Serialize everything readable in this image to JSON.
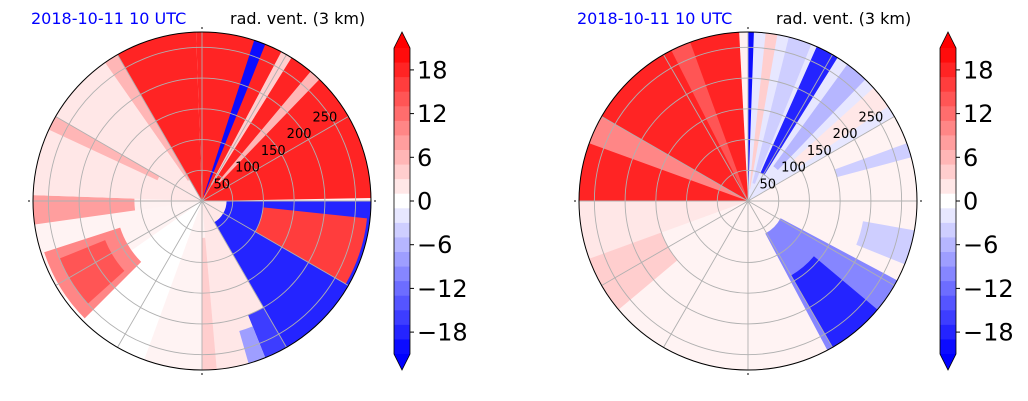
{
  "chart_data": [
    {
      "type": "heatmap",
      "subtype": "polar PPI",
      "title_left": "2018-10-11 10 UTC",
      "title_right": "rad. vent. (3 km)",
      "r_ticks": [
        50,
        100,
        150,
        200,
        250
      ],
      "rlim": [
        0,
        275
      ],
      "angle_lines_deg": [
        0,
        30,
        60,
        90,
        120,
        150,
        180,
        210,
        240,
        270,
        300,
        330
      ],
      "colorbar": {
        "ticks": [
          18,
          12,
          6,
          0,
          -6,
          -12,
          -18
        ],
        "tick_labels": [
          "18",
          "12",
          "6",
          "0",
          "−6",
          "−12",
          "−18"
        ],
        "range": [
          -21,
          21
        ],
        "extend": "both",
        "colormap": "bwr"
      },
      "fields": [
        {
          "a0": -2,
          "a1": 89,
          "r0": 0,
          "r1": 275,
          "v": 18
        },
        {
          "a0": 90,
          "a1": 100,
          "r0": 0,
          "r1": 275,
          "v": 2
        },
        {
          "a0": 100,
          "a1": 150,
          "r0": 0,
          "r1": 275,
          "v": 2
        },
        {
          "a0": 150,
          "a1": 175,
          "r0": 0,
          "r1": 275,
          "v": 2
        },
        {
          "a0": 175,
          "a1": 180,
          "r0": 60,
          "r1": 275,
          "v": 4
        },
        {
          "a0": 180,
          "a1": 200,
          "r0": 0,
          "r1": 275,
          "v": 1
        },
        {
          "a0": 200,
          "a1": 235,
          "r0": 0,
          "r1": 275,
          "v": 0
        },
        {
          "a0": 235,
          "a1": 262,
          "r0": 0,
          "r1": 275,
          "v": 1
        },
        {
          "a0": 262,
          "a1": 272,
          "r0": 110,
          "r1": 275,
          "v": 8
        },
        {
          "a0": 272,
          "a1": 330,
          "r0": 0,
          "r1": 275,
          "v": 2
        },
        {
          "a0": 295,
          "a1": 300,
          "r0": 80,
          "r1": 275,
          "v": 6
        },
        {
          "a0": 325,
          "a1": 330,
          "r0": 40,
          "r1": 275,
          "v": 6
        },
        {
          "a0": 330,
          "a1": 358,
          "r0": 0,
          "r1": 275,
          "v": 18
        },
        {
          "a0": 18,
          "a1": 22,
          "r0": 10,
          "r1": 275,
          "v": -20
        },
        {
          "a0": 28,
          "a1": 32,
          "r0": 30,
          "r1": 275,
          "v": 4
        },
        {
          "a0": 40,
          "a1": 44,
          "r0": 40,
          "r1": 275,
          "v": 6
        },
        {
          "a0": 90,
          "a1": 150,
          "r0": 40,
          "r1": 275,
          "v": -18
        },
        {
          "a0": 96,
          "a1": 120,
          "r0": 100,
          "r1": 270,
          "v": 16
        },
        {
          "a0": 150,
          "a1": 158,
          "r0": 200,
          "r1": 275,
          "v": -16
        },
        {
          "a0": 158,
          "a1": 164,
          "r0": 220,
          "r1": 275,
          "v": -8
        },
        {
          "a0": 225,
          "a1": 252,
          "r0": 140,
          "r1": 270,
          "v": 10
        },
        {
          "a0": 228,
          "a1": 248,
          "r0": 170,
          "r1": 250,
          "v": 14
        }
      ]
    },
    {
      "type": "heatmap",
      "subtype": "polar PPI",
      "title_left": "2018-10-11 10 UTC",
      "title_right": "rad. vent. (3 km)",
      "r_ticks": [
        50,
        100,
        150,
        200,
        250
      ],
      "rlim": [
        0,
        275
      ],
      "angle_lines_deg": [
        0,
        30,
        60,
        90,
        120,
        150,
        180,
        210,
        240,
        270,
        300,
        330
      ],
      "colorbar": {
        "ticks": [
          18,
          12,
          6,
          0,
          -6,
          -12,
          -18
        ],
        "tick_labels": [
          "18",
          "12",
          "6",
          "0",
          "−6",
          "−12",
          "−18"
        ],
        "range": [
          -21,
          21
        ],
        "extend": "both",
        "colormap": "bwr"
      },
      "fields": [
        {
          "a0": 0,
          "a1": 60,
          "r0": 0,
          "r1": 275,
          "v": -2
        },
        {
          "a0": 0,
          "a1": 2,
          "r0": 10,
          "r1": 275,
          "v": -20
        },
        {
          "a0": 6,
          "a1": 10,
          "r0": 20,
          "r1": 275,
          "v": 4
        },
        {
          "a0": 14,
          "a1": 22,
          "r0": 30,
          "r1": 275,
          "v": -4
        },
        {
          "a0": 24,
          "a1": 32,
          "r0": 50,
          "r1": 275,
          "v": -18
        },
        {
          "a0": 36,
          "a1": 44,
          "r0": 70,
          "r1": 275,
          "v": -6
        },
        {
          "a0": 48,
          "a1": 56,
          "r0": 100,
          "r1": 275,
          "v": 2
        },
        {
          "a0": 60,
          "a1": 90,
          "r0": 0,
          "r1": 275,
          "v": 1
        },
        {
          "a0": 70,
          "a1": 75,
          "r0": 150,
          "r1": 275,
          "v": -4
        },
        {
          "a0": 90,
          "a1": 180,
          "r0": 0,
          "r1": 275,
          "v": 1
        },
        {
          "a0": 118,
          "a1": 152,
          "r0": 60,
          "r1": 275,
          "v": -10
        },
        {
          "a0": 130,
          "a1": 150,
          "r0": 140,
          "r1": 275,
          "v": -18
        },
        {
          "a0": 100,
          "a1": 112,
          "r0": 190,
          "r1": 275,
          "v": -4
        },
        {
          "a0": 180,
          "a1": 250,
          "r0": 0,
          "r1": 275,
          "v": 1
        },
        {
          "a0": 230,
          "a1": 262,
          "r0": 150,
          "r1": 275,
          "v": 4
        },
        {
          "a0": 250,
          "a1": 270,
          "r0": 0,
          "r1": 275,
          "v": 2
        },
        {
          "a0": 270,
          "a1": 357,
          "r0": 0,
          "r1": 275,
          "v": 18
        },
        {
          "a0": 290,
          "a1": 300,
          "r0": 0,
          "r1": 275,
          "v": 10
        },
        {
          "a0": 333,
          "a1": 340,
          "r0": 0,
          "r1": 275,
          "v": 14
        }
      ]
    }
  ]
}
